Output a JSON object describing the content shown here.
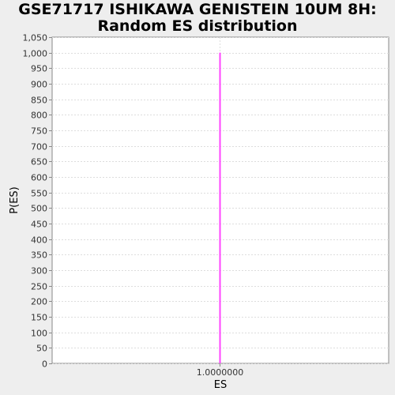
{
  "chart_data": {
    "type": "bar",
    "title_line1": "GSE71717 ISHIKAWA GENISTEIN 10UM 8H:",
    "title_line2": "Random ES distribution",
    "xlabel": "ES",
    "ylabel": "P(ES)",
    "x_tick_labels": [
      "1.0000000"
    ],
    "x": [
      1.0
    ],
    "values": [
      1000
    ],
    "ylim": [
      0,
      1050
    ],
    "y_ticks": [
      0,
      50,
      100,
      150,
      200,
      250,
      300,
      350,
      400,
      450,
      500,
      550,
      600,
      650,
      700,
      750,
      800,
      850,
      900,
      950,
      1000,
      1050
    ],
    "y_tick_labels": [
      "0",
      "50",
      "100",
      "150",
      "200",
      "250",
      "300",
      "350",
      "400",
      "450",
      "500",
      "550",
      "600",
      "650",
      "700",
      "750",
      "800",
      "850",
      "900",
      "950",
      "1,000",
      "1,050"
    ],
    "grid": true,
    "colors": {
      "bar": "#ff44ff",
      "plot_background": "#ffffff",
      "page_background": "#eeeeee",
      "grid": "#dddddd",
      "axis": "#888888"
    }
  }
}
